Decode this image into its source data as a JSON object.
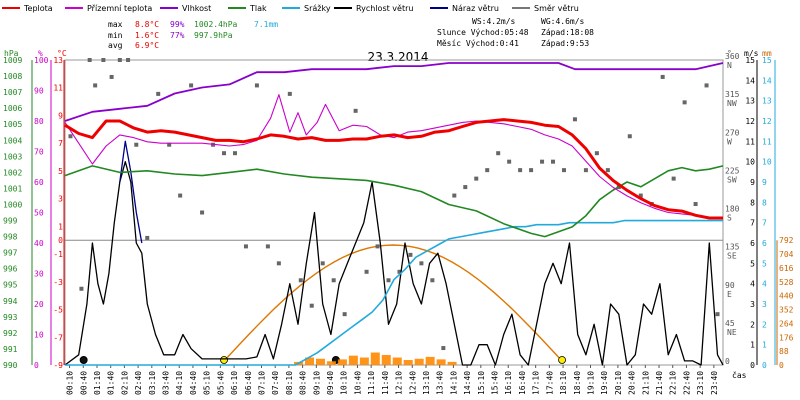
{
  "chart_data": {
    "type": "line",
    "title": "23.3.2014",
    "legend": [
      {
        "name": "Teplota",
        "color": "#ee0000"
      },
      {
        "name": "Přízemní teplota",
        "color": "#cc00cc"
      },
      {
        "name": "Vlhkost",
        "color": "#8800cc"
      },
      {
        "name": "Tlak",
        "color": "#228822"
      },
      {
        "name": "Srážky",
        "color": "#22aadd"
      },
      {
        "name": "Rychlost větru",
        "color": "#000000"
      },
      {
        "name": "Náraz větru",
        "color": "#000088"
      },
      {
        "name": "Směr větru",
        "color": "#777777"
      }
    ],
    "stats": {
      "max_label": "max",
      "max_temp": "8.8°C",
      "max_hum": "99%",
      "max_press": "1002.4hPa",
      "max_rain": "7.1mm",
      "min_label": "min",
      "min_temp": "1.6°C",
      "min_hum": "77%",
      "min_press": "997.9hPa",
      "avg_label": "avg",
      "avg_temp": "6.9°C"
    },
    "info": {
      "ws": "WS:4.2m/s",
      "wg": "WG:4.6m/s",
      "sun_rise": "Slunce Východ:05:48",
      "sun_set": "Západ:18:08",
      "moon_rise": "Měsíc  Východ:0:41",
      "moon_set": "Západ:9:53"
    },
    "axis_labels": {
      "hpa": "hPa",
      "pct": "%",
      "deg": "°C",
      "dir": "°",
      "ms": "m/s",
      "mm": "mm",
      "time": "čas"
    },
    "x_ticks": [
      "00:10",
      "00:40",
      "01:10",
      "01:40",
      "02:10",
      "02:40",
      "03:10",
      "03:40",
      "04:10",
      "04:40",
      "05:10",
      "05:40",
      "06:10",
      "06:40",
      "07:10",
      "07:40",
      "08:10",
      "08:40",
      "09:10",
      "09:40",
      "10:10",
      "10:40",
      "11:10",
      "11:40",
      "12:10",
      "12:40",
      "13:10",
      "13:40",
      "14:10",
      "14:40",
      "15:10",
      "15:40",
      "16:10",
      "16:40",
      "17:10",
      "17:40",
      "18:10",
      "18:40",
      "19:10",
      "19:40",
      "20:10",
      "20:40",
      "21:10",
      "21:40",
      "22:10",
      "22:40",
      "23:10",
      "23:40"
    ],
    "y_axes": {
      "pressure": {
        "ticks": [
          "1009",
          "1008",
          "1007",
          "1006",
          "1005",
          "1004",
          "1003",
          "1002",
          "1001",
          "1000",
          "999",
          "998",
          "997",
          "996",
          "995",
          "994",
          "993",
          "992",
          "991",
          "990"
        ],
        "range": [
          990,
          1009
        ]
      },
      "humidity": {
        "ticks": [
          "100",
          "90",
          "80",
          "70",
          "60",
          "50",
          "40",
          "30",
          "20",
          "10",
          "0"
        ],
        "range": [
          0,
          100
        ]
      },
      "temperature": {
        "ticks": [
          "13",
          "11",
          "9",
          "7",
          "5",
          "3",
          "1",
          "0",
          "-1",
          "-3",
          "-5",
          "-7",
          "-9"
        ],
        "range": [
          -9,
          13
        ]
      },
      "direction": {
        "ticks": [
          "360",
          "N",
          "315",
          "NW",
          "270",
          "W",
          "225",
          "SW",
          "180",
          "S",
          "135",
          "SE",
          "90",
          "E",
          "45",
          "NE",
          "0"
        ]
      },
      "wind": {
        "ticks": [
          "15",
          "14",
          "13",
          "12",
          "11",
          "10",
          "9",
          "8",
          "7",
          "6",
          "5",
          "4",
          "3",
          "2",
          "1",
          "0"
        ],
        "range": [
          0,
          15
        ]
      },
      "rain": {
        "ticks": [
          "792",
          "704",
          "616",
          "528",
          "440",
          "352",
          "264",
          "176",
          "88",
          "0"
        ],
        "range": [
          0,
          792
        ]
      }
    },
    "series": {
      "temperature_x": [
        0,
        0.5,
        1,
        1.5,
        2,
        2.5,
        3,
        3.5,
        4,
        4.5,
        5,
        5.5,
        6,
        6.5,
        7,
        7.5,
        8,
        8.5,
        9,
        9.5,
        10,
        10.5,
        11,
        11.5,
        12,
        12.5,
        13,
        13.5,
        14,
        14.5,
        15,
        15.5,
        16,
        16.5,
        17,
        17.5,
        18,
        18.5,
        19,
        19.5,
        20,
        20.5,
        21,
        21.5,
        22,
        22.5,
        23,
        23.5,
        24
      ],
      "temperature": [
        8.3,
        7.7,
        7.4,
        8.6,
        8.6,
        8.1,
        7.8,
        7.9,
        7.8,
        7.6,
        7.4,
        7.2,
        7.2,
        7.1,
        7.3,
        7.6,
        7.5,
        7.3,
        7.4,
        7.2,
        7.2,
        7.3,
        7.3,
        7.5,
        7.6,
        7.4,
        7.5,
        7.8,
        7.9,
        8.2,
        8.5,
        8.6,
        8.7,
        8.6,
        8.5,
        8.3,
        8.2,
        7.6,
        6.6,
        5.2,
        4.3,
        3.6,
        3.0,
        2.5,
        2.2,
        2.1,
        1.8,
        1.6,
        1.6
      ],
      "ground_temp_x": [
        0,
        0.5,
        1,
        1.5,
        2,
        2.5,
        3,
        3.5,
        4,
        4.5,
        5,
        5.5,
        6,
        6.5,
        7,
        7.5,
        7.8,
        8.2,
        8.5,
        8.8,
        9.2,
        9.5,
        10,
        10.5,
        11,
        11.5,
        12,
        12.5,
        13,
        13.5,
        14,
        14.5,
        15,
        15.5,
        16,
        16.5,
        17,
        17.5,
        18,
        18.5,
        19,
        19.5,
        20,
        20.5,
        21,
        21.5,
        22,
        22.5,
        23,
        23.5,
        24
      ],
      "ground_temp": [
        8.5,
        7.0,
        5.5,
        6.8,
        7.6,
        7.4,
        7.1,
        7.0,
        7.0,
        7.0,
        7.0,
        6.9,
        6.8,
        6.9,
        7.2,
        8.8,
        10.5,
        7.8,
        9.2,
        7.6,
        8.5,
        9.8,
        7.9,
        8.3,
        8.2,
        7.6,
        7.4,
        7.8,
        7.9,
        8.1,
        8.3,
        8.5,
        8.6,
        8.5,
        8.4,
        8.2,
        8.0,
        7.6,
        7.3,
        6.8,
        5.7,
        4.6,
        3.8,
        3.2,
        2.7,
        2.3,
        2.0,
        1.9,
        1.8,
        1.6,
        1.6
      ],
      "humidity_x": [
        0,
        1,
        2,
        3,
        4,
        5,
        6,
        7,
        8,
        9,
        10,
        11,
        12,
        13,
        14,
        15,
        16,
        17,
        18,
        18.6,
        19,
        20,
        21,
        22,
        23,
        24
      ],
      "humidity": [
        80,
        83,
        84,
        85,
        89,
        91,
        92,
        96,
        96,
        97,
        97,
        97,
        98,
        98,
        99,
        99,
        99,
        99,
        99,
        97,
        97,
        97,
        97,
        97,
        97,
        99
      ],
      "pressure_x": [
        0,
        1,
        2,
        3,
        4,
        5,
        6,
        7,
        8,
        9,
        10,
        11,
        12,
        13,
        14,
        15,
        16,
        17,
        17.5,
        18,
        18.5,
        19,
        19.5,
        20,
        20.5,
        21,
        21.5,
        22,
        22.5,
        23,
        23.5,
        24
      ],
      "pressure": [
        1001.8,
        1002.4,
        1002.0,
        1002.1,
        1001.9,
        1001.8,
        1002.0,
        1002.2,
        1001.9,
        1001.7,
        1001.6,
        1001.5,
        1001.2,
        1000.8,
        1000.0,
        999.6,
        998.8,
        998.2,
        998.0,
        998.3,
        998.6,
        999.3,
        1000.3,
        1000.9,
        1001.4,
        1001.1,
        1001.6,
        1002.1,
        1002.3,
        1002.1,
        1002.2,
        1002.4
      ],
      "rain_x": [
        0,
        8.4,
        8.8,
        9.2,
        9.6,
        10.0,
        10.4,
        10.8,
        11.2,
        11.6,
        12.0,
        12.4,
        12.8,
        13.2,
        13.6,
        14.0,
        14.4,
        14.8,
        15.2,
        15.6,
        16.0,
        16.4,
        16.8,
        17.2,
        17.6,
        18.0,
        18.4,
        18.8,
        19.2,
        19.6,
        20.0,
        20.4,
        20.8,
        21.2,
        21.6,
        22.0,
        22.4,
        22.8,
        23.2,
        23.6,
        24
      ],
      "rain_total": [
        0,
        0,
        0.3,
        0.6,
        1.0,
        1.4,
        1.8,
        2.2,
        2.6,
        3.2,
        4.2,
        4.7,
        5.3,
        5.6,
        5.9,
        6.2,
        6.3,
        6.4,
        6.5,
        6.6,
        6.7,
        6.8,
        6.8,
        6.9,
        6.9,
        6.9,
        7.0,
        7.0,
        7.0,
        7.0,
        7.0,
        7.1,
        7.1,
        7.1,
        7.1,
        7.1,
        7.1,
        7.1,
        7.1,
        7.1,
        7.1
      ],
      "wind_x": [
        0,
        0.5,
        0.8,
        1.0,
        1.2,
        1.4,
        1.6,
        1.8,
        2.0,
        2.2,
        2.4,
        2.6,
        2.8,
        3.0,
        3.3,
        3.6,
        4.0,
        4.3,
        4.6,
        5.0,
        5.4,
        5.8,
        6.2,
        6.6,
        7.0,
        7.3,
        7.6,
        7.9,
        8.2,
        8.5,
        8.8,
        9.1,
        9.4,
        9.7,
        10.0,
        10.3,
        10.6,
        10.9,
        11.2,
        11.5,
        11.8,
        12.1,
        12.4,
        12.7,
        13.0,
        13.3,
        13.6,
        13.9,
        14.2,
        14.5,
        14.8,
        15.1,
        15.4,
        15.7,
        16.0,
        16.3,
        16.6,
        16.9,
        17.2,
        17.5,
        17.8,
        18.1,
        18.4,
        18.7,
        19.0,
        19.3,
        19.6,
        19.9,
        20.2,
        20.5,
        20.8,
        21.1,
        21.4,
        21.7,
        22.0,
        22.3,
        22.6,
        22.9,
        23.2,
        23.5,
        23.8,
        24
      ],
      "wind_speed": [
        0,
        0.5,
        3,
        6,
        4,
        3,
        4.5,
        7,
        9,
        10,
        9,
        6,
        5.5,
        3,
        1.5,
        0.5,
        0.5,
        1.5,
        0.8,
        0.3,
        0.3,
        0.3,
        0.3,
        0.3,
        0.4,
        1.5,
        0.3,
        2,
        4,
        2,
        5,
        7.5,
        3,
        1.5,
        4,
        5,
        6,
        7,
        9,
        6,
        2,
        3,
        6,
        4,
        3,
        5,
        5.5,
        4,
        2,
        0,
        0,
        1,
        1,
        0,
        1.5,
        2.5,
        0.5,
        0,
        2,
        4,
        5,
        4,
        6,
        1.5,
        0.5,
        2,
        0,
        3,
        2.5,
        0,
        0.5,
        3,
        2.5,
        4,
        0.5,
        1.5,
        0.2,
        0.2,
        0,
        6,
        0.5,
        0
      ],
      "gust_x": [
        2.0,
        2.2,
        2.4,
        2.6,
        2.8
      ],
      "gust": [
        9,
        11,
        9.5,
        7.5,
        6
      ],
      "direction_x": [
        0.2,
        0.6,
        0.9,
        1.1,
        1.4,
        1.7,
        2.0,
        2.3,
        2.6,
        3.0,
        3.4,
        3.8,
        4.2,
        4.6,
        5.0,
        5.4,
        5.8,
        6.2,
        6.6,
        7.0,
        7.4,
        7.8,
        8.2,
        8.6,
        9.0,
        9.4,
        9.8,
        10.2,
        10.6,
        11.0,
        11.4,
        11.8,
        12.2,
        12.6,
        13.0,
        13.4,
        13.8,
        14.2,
        14.6,
        15.0,
        15.4,
        15.8,
        16.2,
        16.6,
        17.0,
        17.4,
        17.8,
        18.2,
        18.6,
        19.0,
        19.4,
        19.8,
        20.2,
        20.6,
        21.0,
        21.4,
        21.8,
        22.2,
        22.6,
        23.0,
        23.4,
        23.8
      ],
      "direction": [
        270,
        90,
        360,
        330,
        360,
        340,
        360,
        360,
        260,
        150,
        320,
        260,
        200,
        330,
        180,
        260,
        250,
        250,
        140,
        330,
        140,
        120,
        320,
        100,
        70,
        120,
        100,
        60,
        300,
        110,
        140,
        100,
        110,
        130,
        120,
        100,
        20,
        200,
        210,
        220,
        230,
        250,
        240,
        230,
        230,
        240,
        240,
        230,
        290,
        230,
        250,
        230,
        210,
        270,
        200,
        190,
        340,
        220,
        310,
        190,
        330,
        60
      ]
    },
    "sun_markers": {
      "rise_x": 5.8,
      "set_x": 18.13
    },
    "moon_markers": {
      "rise_x": 0.68,
      "set_x": 9.88
    }
  }
}
